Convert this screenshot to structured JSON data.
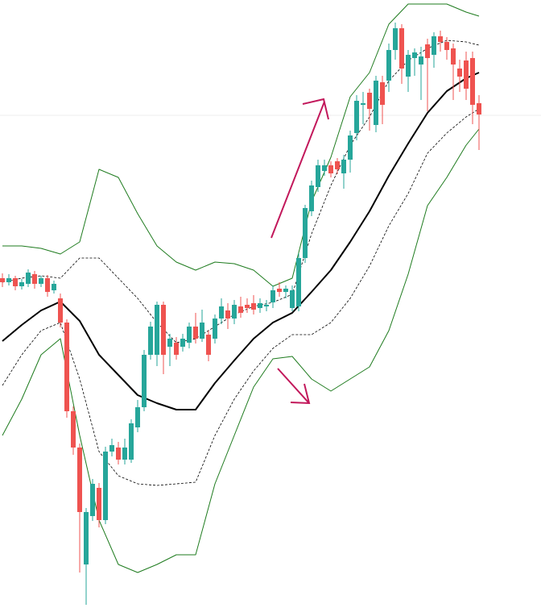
{
  "chart_data": {
    "type": "candlestick",
    "ylim": [
      0,
      754
    ],
    "up_color": "#26a69a",
    "down_color": "#ef5350",
    "candles": {
      "open": [
        409,
        404,
        409,
        399,
        402,
        414,
        402,
        409,
        394,
        384,
        354,
        244,
        199,
        54,
        114,
        149,
        109,
        194,
        199,
        184,
        184,
        224,
        249,
        314,
        314,
        376,
        324,
        329,
        324,
        329,
        349,
        334,
        339,
        334,
        359,
        369,
        359,
        374,
        376,
        378,
        372,
        374,
        379,
        396,
        392,
        372,
        374,
        434,
        492,
        522,
        542,
        549,
        554,
        539,
        556,
        589,
        624,
        639,
        599,
        652,
        654,
        692,
        719,
        659,
        682,
        674,
        699,
        686,
        709,
        702,
        694,
        669,
        679,
        682,
        626
      ],
      "high": [
        415,
        414,
        412,
        408,
        420,
        418,
        412,
        413,
        406,
        390,
        358,
        250,
        204,
        124,
        160,
        155,
        200,
        210,
        206,
        210,
        234,
        258,
        320,
        355,
        380,
        380,
        340,
        336,
        340,
        354,
        366,
        370,
        344,
        364,
        384,
        378,
        382,
        386,
        384,
        388,
        384,
        382,
        400,
        404,
        400,
        400,
        440,
        500,
        530,
        556,
        556,
        554,
        558,
        562,
        592,
        636,
        640,
        644,
        660,
        660,
        700,
        726,
        724,
        692,
        694,
        696,
        706,
        714,
        716,
        708,
        700,
        680,
        690,
        690,
        636
      ],
      "low": [
        398,
        400,
        394,
        395,
        398,
        396,
        398,
        386,
        390,
        348,
        236,
        190,
        44,
        4,
        108,
        100,
        104,
        188,
        178,
        178,
        180,
        218,
        244,
        308,
        300,
        290,
        300,
        308,
        318,
        322,
        328,
        330,
        306,
        328,
        352,
        346,
        352,
        360,
        366,
        364,
        366,
        368,
        372,
        386,
        384,
        368,
        368,
        428,
        486,
        516,
        536,
        534,
        538,
        520,
        540,
        580,
        600,
        592,
        590,
        600,
        640,
        680,
        650,
        640,
        660,
        630,
        616,
        670,
        690,
        680,
        630,
        640,
        630,
        600,
        568
      ],
      "close": [
        404,
        409,
        399,
        404,
        416,
        402,
        409,
        392,
        402,
        354,
        244,
        199,
        119,
        119,
        154,
        109,
        194,
        202,
        184,
        199,
        229,
        249,
        314,
        349,
        376,
        314,
        334,
        314,
        334,
        349,
        334,
        354,
        314,
        359,
        374,
        359,
        376,
        366,
        372,
        370,
        378,
        376,
        394,
        392,
        396,
        394,
        434,
        496,
        524,
        549,
        549,
        539,
        544,
        556,
        586,
        629,
        626,
        619,
        654,
        624,
        692,
        719,
        669,
        686,
        689,
        684,
        682,
        709,
        702,
        692,
        674,
        659,
        644,
        624,
        612
      ]
    },
    "bands": [
      {
        "color": "#1e7b1e",
        "style": "solid",
        "width": 1,
        "x": [
          0,
          3,
          6,
          9,
          12,
          15,
          18,
          21,
          24,
          27,
          30,
          33,
          36,
          39,
          42,
          45,
          48,
          51,
          54,
          57,
          60,
          63,
          66,
          69,
          72,
          74
        ],
        "values": [
          449,
          449,
          446,
          439,
          454,
          544,
          534,
          489,
          449,
          429,
          419,
          429,
          427,
          419,
          399,
          409,
          504,
          559,
          634,
          664,
          724,
          749,
          749,
          749,
          739,
          734
        ]
      },
      {
        "color": "#000000",
        "style": "dashed",
        "width": 0.8,
        "x": [
          0,
          3,
          6,
          9,
          12,
          15,
          18,
          21,
          24,
          27,
          30,
          33,
          36,
          39,
          42,
          45,
          48,
          51,
          54,
          57,
          60,
          63,
          66,
          69,
          72,
          74
        ],
        "values": [
          404,
          409,
          412,
          409,
          434,
          434,
          409,
          384,
          354,
          329,
          334,
          349,
          364,
          374,
          379,
          389,
          464,
          524,
          574,
          609,
          654,
          679,
          694,
          704,
          702,
          698
        ]
      },
      {
        "color": "#000000",
        "style": "solid",
        "width": 2,
        "x": [
          0,
          3,
          6,
          9,
          12,
          15,
          18,
          21,
          24,
          27,
          30,
          33,
          36,
          39,
          42,
          45,
          48,
          51,
          54,
          57,
          60,
          63,
          66,
          69,
          72,
          74
        ],
        "values": [
          331,
          351,
          369,
          380,
          356,
          314,
          289,
          264,
          254,
          246,
          246,
          279,
          307,
          334,
          354,
          366,
          392,
          419,
          454,
          492,
          536,
          576,
          614,
          641,
          657,
          664
        ]
      },
      {
        "color": "#000000",
        "style": "dashed",
        "width": 0.8,
        "x": [
          0,
          3,
          6,
          9,
          12,
          15,
          18,
          21,
          24,
          27,
          30,
          33,
          36,
          39,
          42,
          45,
          48,
          51,
          54,
          57,
          60,
          63,
          66,
          69,
          72,
          74
        ],
        "values": [
          276,
          314,
          344,
          354,
          284,
          194,
          164,
          154,
          152,
          154,
          156,
          214,
          259,
          294,
          322,
          339,
          339,
          354,
          384,
          424,
          474,
          514,
          564,
          589,
          609,
          619
        ]
      },
      {
        "color": "#1e7b1e",
        "style": "solid",
        "width": 1,
        "x": [
          0,
          3,
          6,
          9,
          12,
          15,
          18,
          21,
          24,
          27,
          30,
          33,
          36,
          39,
          42,
          45,
          48,
          51,
          54,
          57,
          60,
          63,
          66,
          69,
          72,
          74
        ],
        "values": [
          214,
          259,
          314,
          334,
          214,
          109,
          54,
          44,
          54,
          66,
          66,
          154,
          214,
          274,
          309,
          312,
          284,
          269,
          284,
          299,
          344,
          414,
          499,
          534,
          574,
          594
        ]
      }
    ]
  }
}
